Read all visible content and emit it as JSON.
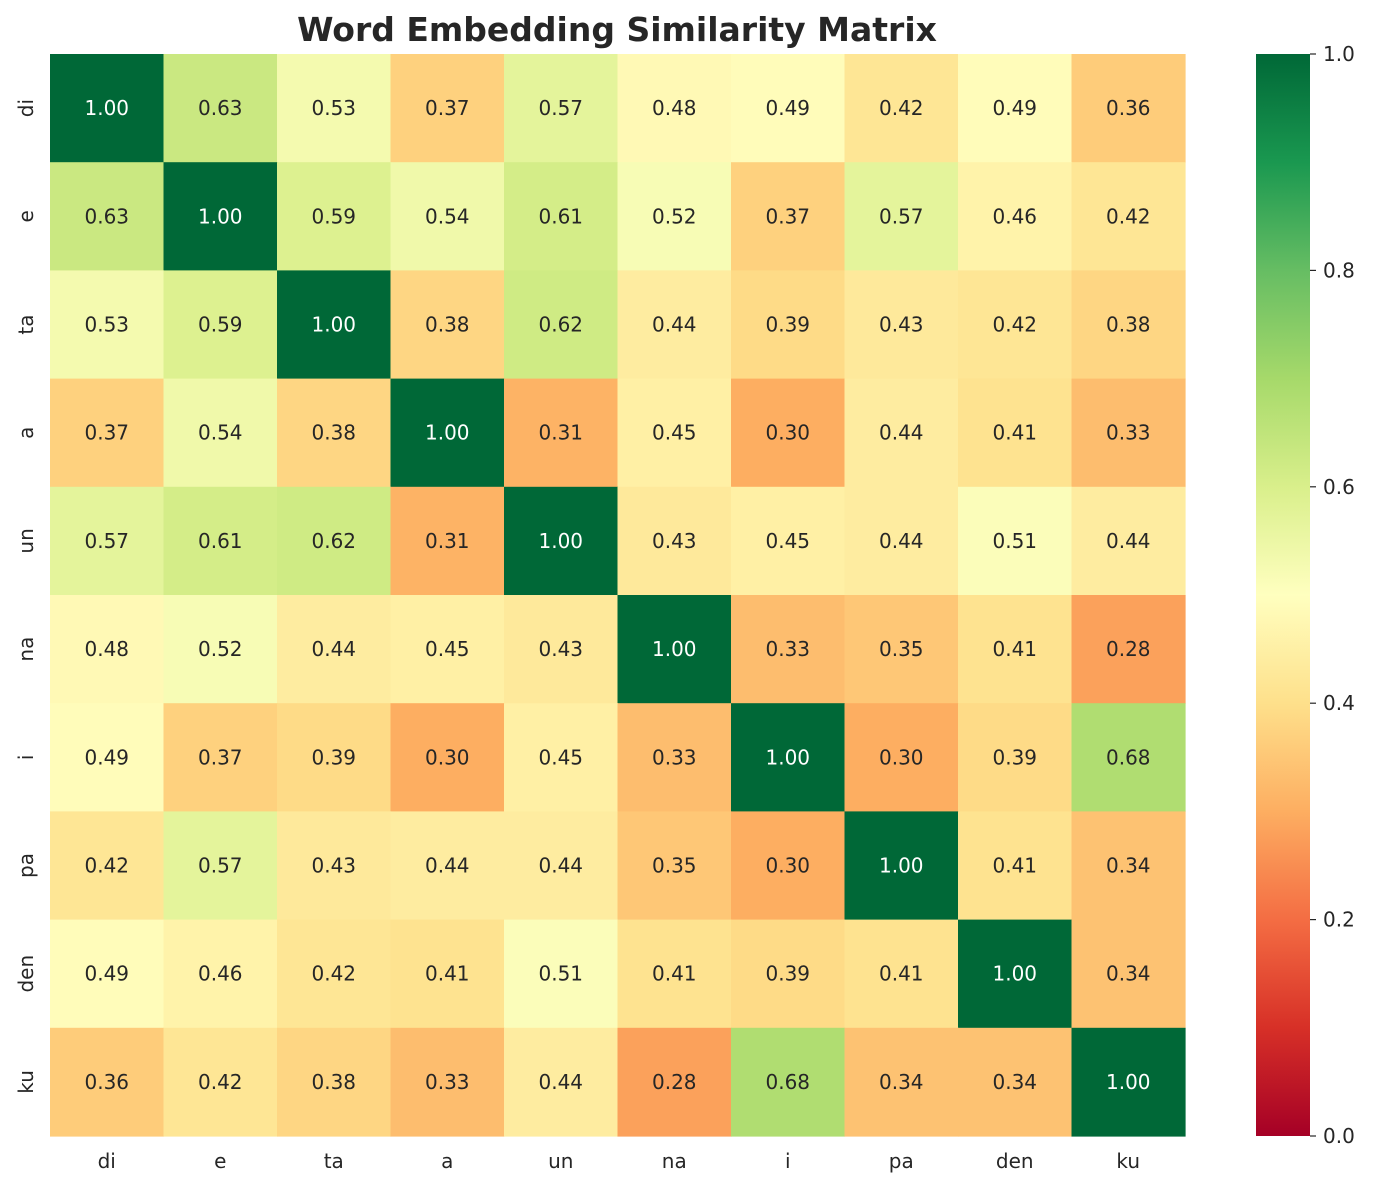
{
  "chart_data": {
    "type": "heatmap",
    "title": "Word Embedding Similarity Matrix",
    "xlabel": "",
    "ylabel": "",
    "x_categories": [
      "di",
      "e",
      "ta",
      "a",
      "un",
      "na",
      "i",
      "pa",
      "den",
      "ku"
    ],
    "y_categories": [
      "di",
      "e",
      "ta",
      "a",
      "un",
      "na",
      "i",
      "pa",
      "den",
      "ku"
    ],
    "values": [
      [
        1.0,
        0.63,
        0.53,
        0.37,
        0.57,
        0.48,
        0.49,
        0.42,
        0.49,
        0.36
      ],
      [
        0.63,
        1.0,
        0.59,
        0.54,
        0.61,
        0.52,
        0.37,
        0.57,
        0.46,
        0.42
      ],
      [
        0.53,
        0.59,
        1.0,
        0.38,
        0.62,
        0.44,
        0.39,
        0.43,
        0.42,
        0.38
      ],
      [
        0.37,
        0.54,
        0.38,
        1.0,
        0.31,
        0.45,
        0.3,
        0.44,
        0.41,
        0.33
      ],
      [
        0.57,
        0.61,
        0.62,
        0.31,
        1.0,
        0.43,
        0.45,
        0.44,
        0.51,
        0.44
      ],
      [
        0.48,
        0.52,
        0.44,
        0.45,
        0.43,
        1.0,
        0.33,
        0.35,
        0.41,
        0.28
      ],
      [
        0.49,
        0.37,
        0.39,
        0.3,
        0.45,
        0.33,
        1.0,
        0.3,
        0.39,
        0.68
      ],
      [
        0.42,
        0.57,
        0.43,
        0.44,
        0.44,
        0.35,
        0.3,
        1.0,
        0.41,
        0.34
      ],
      [
        0.49,
        0.46,
        0.42,
        0.41,
        0.51,
        0.41,
        0.39,
        0.41,
        1.0,
        0.34
      ],
      [
        0.36,
        0.42,
        0.38,
        0.33,
        0.44,
        0.28,
        0.68,
        0.34,
        0.34,
        1.0
      ]
    ],
    "value_format": "0.00",
    "colormap": "RdYlGn",
    "colorbar": {
      "range": [
        0.0,
        1.0
      ],
      "ticks": [
        "0.0",
        "0.2",
        "0.4",
        "0.6",
        "0.8",
        "1.0"
      ],
      "placement": "right"
    },
    "grid": false,
    "colors": {
      "text_dark": "#262626",
      "text_light": "#ffffff",
      "tick_color": "#262626"
    }
  }
}
